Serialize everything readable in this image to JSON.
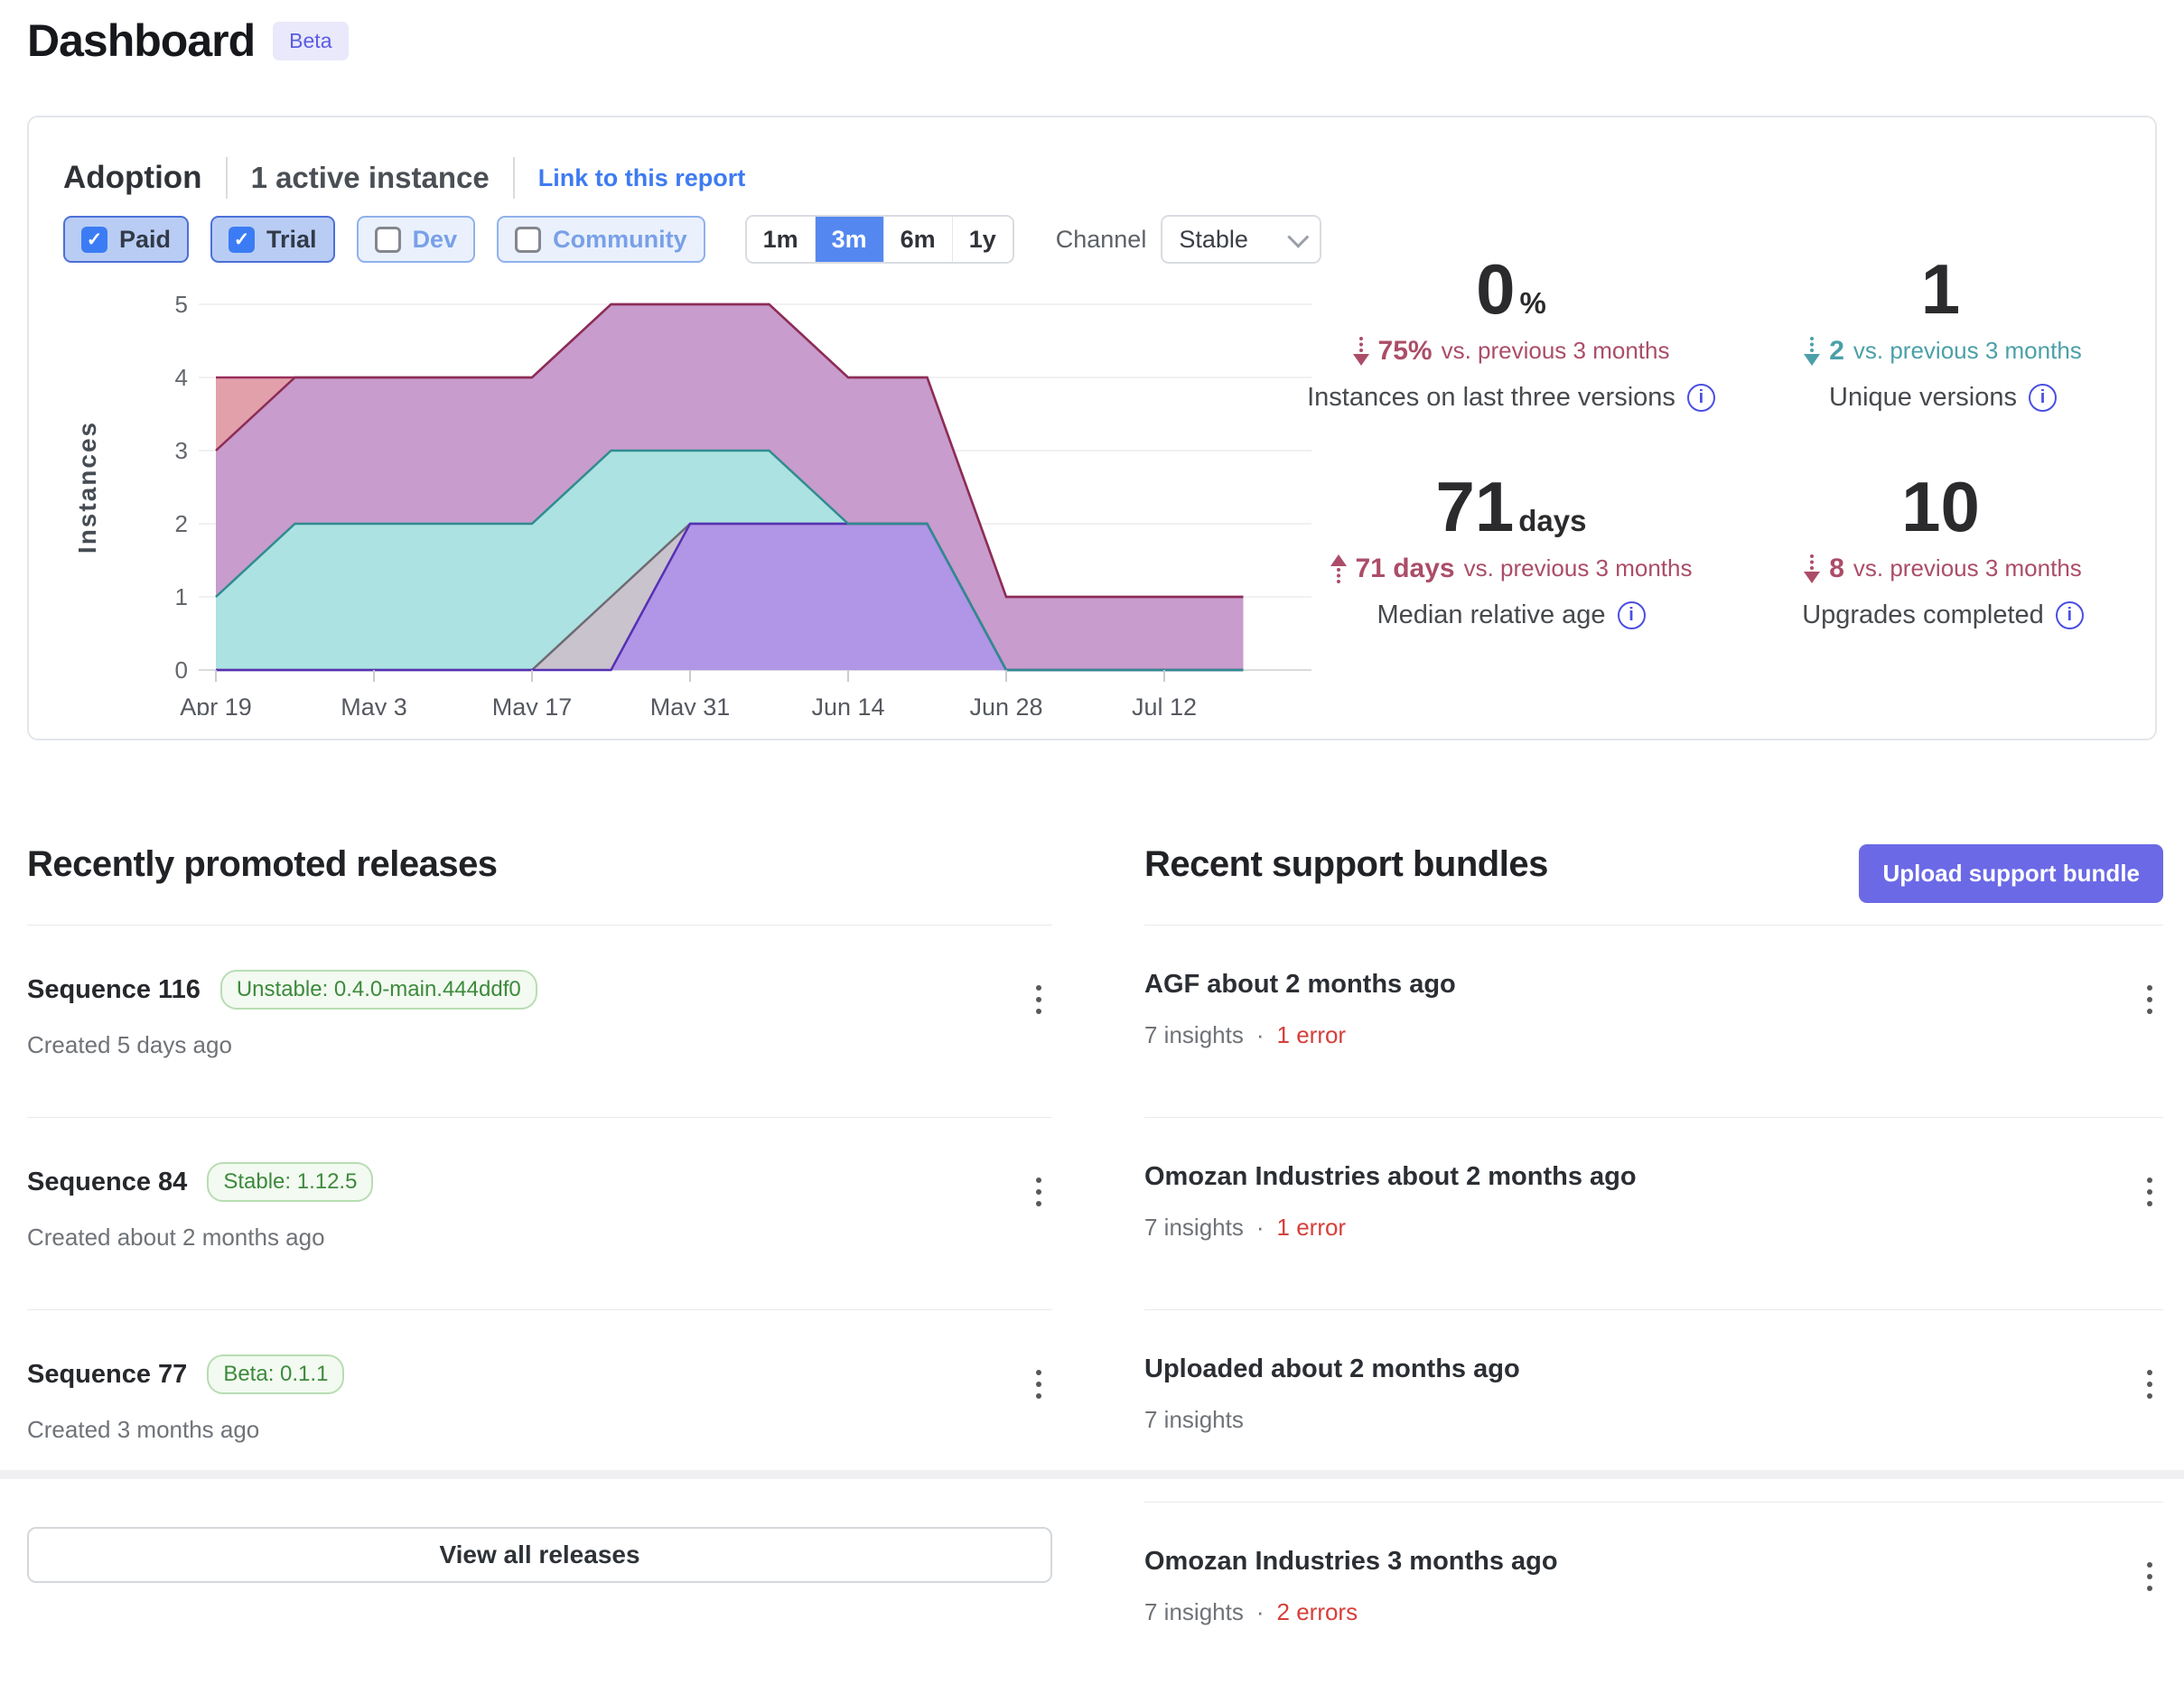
{
  "page": {
    "title": "Dashboard",
    "beta_badge": "Beta"
  },
  "icons": {
    "info": "i",
    "check": "✓"
  },
  "adoption": {
    "title": "Adoption",
    "active_instances": "1 active instance",
    "link": "Link to this report",
    "filters": [
      {
        "label": "Paid",
        "checked": true
      },
      {
        "label": "Trial",
        "checked": true
      },
      {
        "label": "Dev",
        "checked": false
      },
      {
        "label": "Community",
        "checked": false
      }
    ],
    "time_ranges": [
      "1m",
      "3m",
      "6m",
      "1y"
    ],
    "selected_range": "3m",
    "channel_label": "Channel",
    "channel_value": "Stable",
    "stats": [
      {
        "value": "0",
        "unit": "%",
        "direction": "down",
        "change_value": "75%",
        "change_suffix": "vs. previous 3 months",
        "color": "red",
        "label": "Instances on last three versions"
      },
      {
        "value": "1",
        "unit": "",
        "direction": "down",
        "change_value": "2",
        "change_suffix": "vs. previous 3 months",
        "color": "teal",
        "label": "Unique versions"
      },
      {
        "value": "71",
        "unit": "days",
        "direction": "up",
        "change_value": "71 days",
        "change_suffix": "vs. previous 3 months",
        "color": "red",
        "label": "Median relative age"
      },
      {
        "value": "10",
        "unit": "",
        "direction": "down",
        "change_value": "8",
        "change_suffix": "vs. previous 3 months",
        "color": "red",
        "label": "Upgrades completed"
      }
    ]
  },
  "chart_data": {
    "type": "area",
    "ylabel": "Instances",
    "ylim": [
      0,
      5
    ],
    "yticks": [
      0,
      1,
      2,
      3,
      4,
      5
    ],
    "grid": true,
    "legend": "none",
    "x_labels": [
      "Apr 19",
      "May 3",
      "May 17",
      "May 31",
      "Jun 14",
      "Jun 28",
      "Jul 12"
    ],
    "x_label_indices": [
      0,
      2,
      4,
      6,
      8,
      10,
      12
    ],
    "x_step": "weekly",
    "stroke_order": [
      0,
      1,
      3,
      4,
      2
    ],
    "series": [
      {
        "name": "series-1",
        "fill": "#e2a0aa",
        "stroke": "#99305a",
        "values": [
          4,
          4,
          4,
          4,
          4,
          5,
          5,
          5,
          4,
          4,
          1,
          1,
          1,
          1
        ]
      },
      {
        "name": "series-2",
        "fill": "#c89ccc",
        "stroke": "#8c2d57",
        "values": [
          3,
          4,
          4,
          4,
          4,
          5,
          5,
          5,
          4,
          4,
          1,
          1,
          1,
          1
        ]
      },
      {
        "name": "series-3",
        "fill": "#ace2e1",
        "stroke": "#2f8c8f",
        "values": [
          1,
          2,
          2,
          2,
          2,
          3,
          3,
          3,
          2,
          2,
          0,
          0,
          0,
          0
        ]
      },
      {
        "name": "series-4",
        "fill": "#c8c3cc",
        "stroke": "#6e6a74",
        "values": [
          0,
          0,
          0,
          0,
          0,
          1,
          2,
          2,
          2,
          2,
          0,
          0,
          0,
          0
        ]
      },
      {
        "name": "series-5",
        "fill": "#b195e6",
        "stroke": "#5530b5",
        "values": [
          0,
          0,
          0,
          0,
          0,
          0,
          2,
          2,
          2,
          2,
          0,
          0,
          0,
          0
        ]
      }
    ]
  },
  "releases": {
    "heading": "Recently promoted releases",
    "items": [
      {
        "title": "Sequence 116",
        "badge": "Unstable: 0.4.0-main.444ddf0",
        "created": "Created 5 days ago"
      },
      {
        "title": "Sequence 84",
        "badge": "Stable: 1.12.5",
        "created": "Created about 2 months ago"
      },
      {
        "title": "Sequence 77",
        "badge": "Beta: 0.1.1",
        "created": "Created 3 months ago"
      }
    ],
    "view_all_label": "View all releases"
  },
  "bundles": {
    "heading": "Recent support bundles",
    "upload_label": "Upload support bundle",
    "items": [
      {
        "title": "AGF about 2 months ago",
        "insights": "7 insights",
        "separator": "·",
        "errors": "1 error"
      },
      {
        "title": "Omozan Industries about 2 months ago",
        "insights": "7 insights",
        "separator": "·",
        "errors": "1 error"
      },
      {
        "title": "Uploaded about 2 months ago",
        "insights": "7 insights",
        "separator": "",
        "errors": ""
      },
      {
        "title": "Omozan Industries 3 months ago",
        "insights": "7 insights",
        "separator": "·",
        "errors": "2 errors"
      }
    ]
  }
}
